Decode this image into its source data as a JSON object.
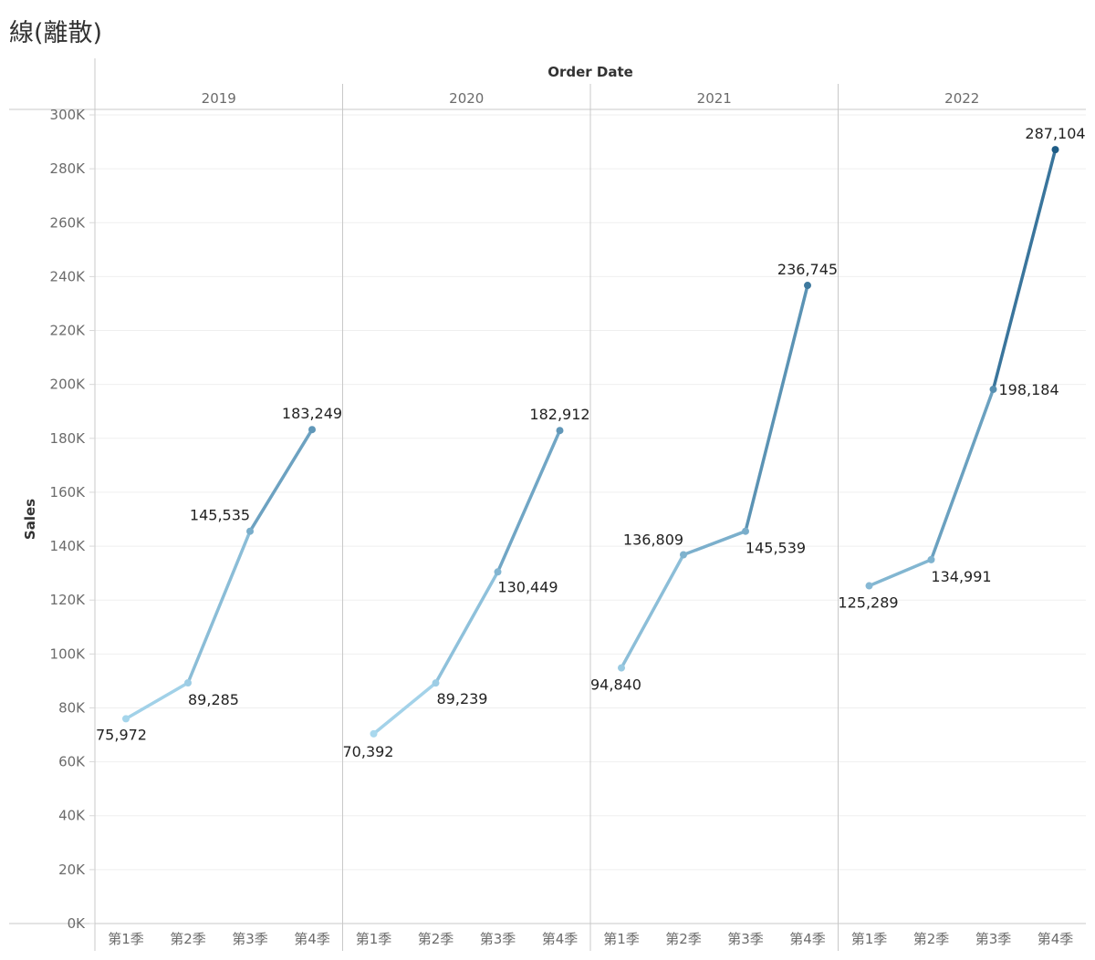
{
  "title": "線(離散)",
  "chart_data": {
    "type": "line",
    "column_header": "Order Date",
    "ylabel": "Sales",
    "ylim": [
      0,
      300000
    ],
    "y_ticks": [
      0,
      20000,
      40000,
      60000,
      80000,
      100000,
      120000,
      140000,
      160000,
      180000,
      200000,
      220000,
      240000,
      260000,
      280000,
      300000
    ],
    "y_tick_labels": [
      "0K",
      "20K",
      "40K",
      "60K",
      "80K",
      "100K",
      "120K",
      "140K",
      "160K",
      "180K",
      "200K",
      "220K",
      "240K",
      "260K",
      "280K",
      "300K"
    ],
    "categories": [
      "第1季",
      "第2季",
      "第3季",
      "第4季"
    ],
    "color_range": [
      "#a9d8ee",
      "#1c5a85"
    ],
    "panels": [
      {
        "year": "2019",
        "values": [
          75972,
          89285,
          145535,
          183249
        ],
        "labels": [
          "75,972",
          "89,285",
          "145,535",
          "183,249"
        ]
      },
      {
        "year": "2020",
        "values": [
          70392,
          89239,
          130449,
          182912
        ],
        "labels": [
          "70,392",
          "89,239",
          "130,449",
          "182,912"
        ]
      },
      {
        "year": "2021",
        "values": [
          94840,
          136809,
          145539,
          236745
        ],
        "labels": [
          "94,840",
          "136,809",
          "145,539",
          "236,745"
        ]
      },
      {
        "year": "2022",
        "values": [
          125289,
          134991,
          198184,
          287104
        ],
        "labels": [
          "125,289",
          "134,991",
          "198,184",
          "287,104"
        ]
      }
    ],
    "grid": true,
    "legend": "none"
  }
}
